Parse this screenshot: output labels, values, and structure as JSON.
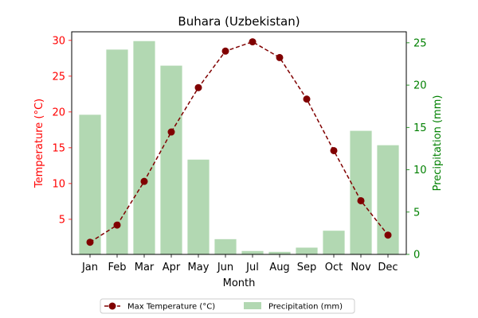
{
  "chart_data": {
    "type": "bar",
    "title": "Buhara (Uzbekistan)",
    "xlabel": "Month",
    "ylabel_left": "Temperature (°C)",
    "ylabel_right": "Precipitation (mm)",
    "categories": [
      "Jan",
      "Feb",
      "Mar",
      "Apr",
      "May",
      "Jun",
      "Jul",
      "Aug",
      "Sep",
      "Oct",
      "Nov",
      "Dec"
    ],
    "series": [
      {
        "name": "Max Temperature (°C)",
        "type": "line",
        "axis": "left",
        "color": "#800000",
        "values": [
          1.8,
          4.2,
          10.3,
          17.2,
          23.4,
          28.5,
          29.8,
          27.6,
          21.8,
          14.6,
          7.6,
          2.8
        ]
      },
      {
        "name": "Precipitation (mm)",
        "type": "bar",
        "axis": "right",
        "color": "#b2d8b2",
        "values": [
          16.5,
          24.2,
          25.2,
          22.3,
          11.2,
          1.8,
          0.4,
          0.3,
          0.8,
          2.8,
          14.6,
          12.9
        ]
      }
    ],
    "ylim_left": [
      0.1,
      31.2
    ],
    "yticks_left": [
      5,
      10,
      15,
      20,
      25,
      30
    ],
    "ylim_right": [
      0,
      26.3
    ],
    "yticks_right": [
      0,
      5,
      10,
      15,
      20,
      25
    ],
    "left_axis_color": "#ff0000",
    "right_axis_color": "#008000",
    "grid": false,
    "legend_placement": "bottom-center"
  }
}
